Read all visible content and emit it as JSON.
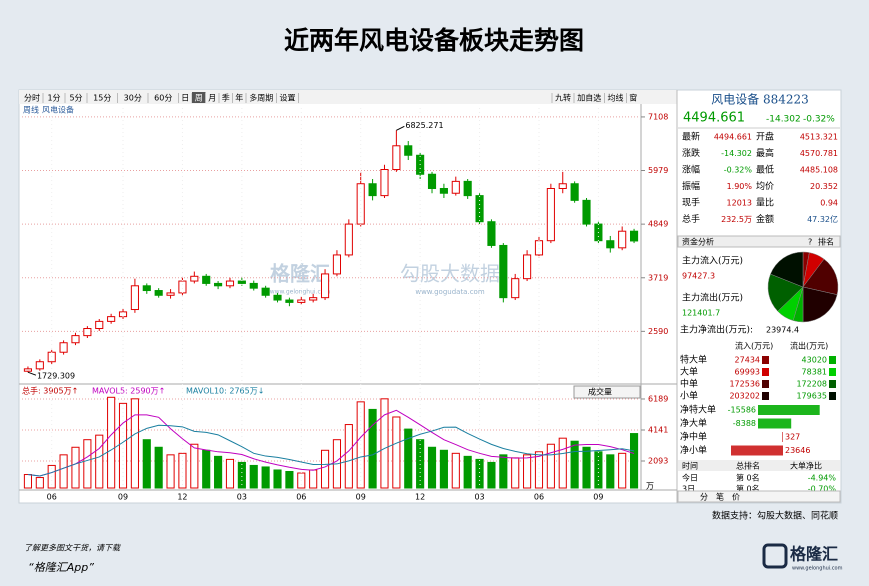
{
  "chart_data": {
    "type": "candlestick",
    "title": "近两年风电设备板块走势图",
    "toolbar_left": [
      "分时",
      "1分",
      "5分",
      "15分",
      "30分",
      "60分",
      "日",
      "周",
      "月",
      "季",
      "年",
      "多周期",
      "设置"
    ],
    "toolbar_selected": "周",
    "toolbar_right": [
      "九转",
      "加自选",
      "均线",
      "窗"
    ],
    "panel_labels": [
      "周线",
      "风电设备"
    ],
    "watermark": [
      "格隆汇",
      "www.gelonghui.com",
      "勾股大数据",
      "www.gogudata.com"
    ],
    "high_label": "6825.271",
    "low_label": "1729.309",
    "categories": [
      null,
      null,
      "06",
      null,
      null,
      null,
      null,
      null,
      "09",
      null,
      null,
      null,
      null,
      "12",
      null,
      null,
      null,
      null,
      "03",
      null,
      null,
      null,
      null,
      "06",
      null,
      null,
      null,
      null,
      "09",
      null,
      null,
      null,
      null,
      "12",
      null,
      null,
      null,
      null,
      "03",
      null,
      null,
      null,
      null,
      "06",
      null,
      null,
      null,
      null,
      "09",
      null,
      null,
      null
    ],
    "open": [
      1750,
      1800,
      1950,
      2150,
      2350,
      2500,
      2650,
      2800,
      2900,
      3050,
      3550,
      3450,
      3350,
      3400,
      3650,
      3750,
      3600,
      3550,
      3650,
      3600,
      3500,
      3350,
      3250,
      3200,
      3250,
      3300,
      3800,
      4200,
      4850,
      5700,
      5450,
      6000,
      6500,
      6300,
      5900,
      5600,
      5500,
      5750,
      5450,
      4900,
      4400,
      3300,
      3700,
      4200,
      4500,
      5600,
      5700,
      5350,
      4850,
      4500,
      4350,
      4700
    ],
    "high": [
      1850,
      2000,
      2200,
      2400,
      2560,
      2700,
      2850,
      2960,
      3080,
      3700,
      3600,
      3500,
      3480,
      3720,
      3850,
      3800,
      3650,
      3720,
      3720,
      3660,
      3550,
      3400,
      3300,
      3320,
      3380,
      3900,
      4300,
      4950,
      5950,
      5800,
      6100,
      6825.271,
      6600,
      6350,
      5950,
      5700,
      5850,
      5800,
      5500,
      4950,
      4450,
      3800,
      4300,
      4600,
      5700,
      5950,
      5750,
      5400,
      4900,
      4600,
      4800,
      4750
    ],
    "low": [
      1729.309,
      1760,
      1900,
      2100,
      2300,
      2450,
      2600,
      2750,
      2850,
      2980,
      3380,
      3300,
      3280,
      3350,
      3600,
      3550,
      3480,
      3500,
      3550,
      3450,
      3300,
      3200,
      3120,
      3150,
      3200,
      3250,
      3750,
      4150,
      4800,
      5350,
      5400,
      5950,
      6200,
      5800,
      5500,
      5400,
      5450,
      5380,
      4850,
      4350,
      3200,
      3250,
      3650,
      4150,
      4450,
      5500,
      5300,
      4800,
      4450,
      4250,
      4300,
      4450
    ],
    "close": [
      1800,
      1950,
      2150,
      2350,
      2500,
      2650,
      2800,
      2900,
      3000,
      3550,
      3450,
      3350,
      3400,
      3650,
      3750,
      3600,
      3550,
      3650,
      3600,
      3500,
      3350,
      3250,
      3200,
      3250,
      3300,
      3800,
      4200,
      4850,
      5700,
      5450,
      6000,
      6500,
      6300,
      5900,
      5600,
      5500,
      5750,
      5450,
      4900,
      4400,
      3300,
      3700,
      4200,
      4500,
      5600,
      5700,
      5350,
      4850,
      4500,
      4350,
      4700,
      4494.661
    ],
    "up_color": "#e00000",
    "down_color": "#009a00",
    "ylim": [
      1565,
      7296
    ],
    "yticks": [
      7108,
      5979,
      4849,
      3719,
      2590
    ],
    "grid": true,
    "volume": {
      "legend": [
        "总手: 3905万↑",
        "MAVOL5: 2590万↑",
        "MAVOL10: 2765万↓"
      ],
      "legend_colors": [
        "#c00000",
        "#c000c0",
        "#1a7fa0"
      ],
      "selector": "成交量",
      "unit": "万",
      "values": [
        1200,
        1000,
        1800,
        2500,
        3000,
        3500,
        3800,
        6300,
        5900,
        6200,
        3500,
        3000,
        2500,
        2600,
        3200,
        2800,
        2400,
        2200,
        2000,
        1800,
        1700,
        1500,
        1400,
        1300,
        1500,
        2800,
        3500,
        4500,
        6000,
        5500,
        6200,
        5000,
        4200,
        3500,
        3000,
        2800,
        2600,
        2400,
        2200,
        2000,
        2500,
        2300,
        2500,
        2700,
        3200,
        3600,
        3400,
        3000,
        2700,
        2500,
        2600,
        3905
      ],
      "ma5": [
        1200,
        1100,
        1330,
        1620,
        1900,
        2360,
        2920,
        3820,
        4600,
        5140,
        5140,
        4980,
        4220,
        3560,
        2960,
        2820,
        2700,
        2640,
        2520,
        2240,
        2020,
        1840,
        1680,
        1540,
        1480,
        1700,
        2100,
        2760,
        3660,
        4460,
        5140,
        5440,
        4980,
        4480,
        3980,
        3500,
        3180,
        2840,
        2600,
        2400,
        2340,
        2280,
        2300,
        2400,
        2640,
        2860,
        3140,
        3180,
        3180,
        3040,
        2840,
        2590
      ],
      "ma10": [
        1200,
        1100,
        1330,
        1620,
        1900,
        2130,
        2360,
        2820,
        3330,
        3880,
        4250,
        4450,
        4420,
        4350,
        4050,
        3980,
        3820,
        3430,
        3040,
        2600,
        2420,
        2330,
        2190,
        2030,
        1860,
        1870,
        1900,
        2100,
        2360,
        2500,
        2920,
        3270,
        3580,
        3860,
        4070,
        4320,
        4330,
        3910,
        3540,
        3190,
        2920,
        2730,
        2570,
        2500,
        2500,
        2590,
        2720,
        2740,
        2790,
        2840,
        2900,
        2765
      ],
      "ma_colors": [
        "#c000c0",
        "#1a7fa0"
      ],
      "ylim": [
        310,
        6650
      ],
      "yticks": [
        6189,
        4141,
        2093
      ]
    }
  },
  "side_panel": {
    "name": "风电设备 884223",
    "price": "4494.661",
    "change": "-14.302",
    "change_pct": "-0.32%",
    "quote": [
      [
        "最新",
        "4494.661",
        "开盘",
        "4513.321"
      ],
      [
        "涨跌",
        "-14.302",
        "最高",
        "4570.781"
      ],
      [
        "涨幅",
        "-0.32%",
        "最低",
        "4485.108"
      ],
      [
        "振幅",
        "1.90%",
        "均价",
        "20.352"
      ],
      [
        "现手",
        "12013",
        "量比",
        "0.94"
      ],
      [
        "总手",
        "232.5万",
        "金额",
        "47.32亿"
      ]
    ],
    "fund_tabs": [
      "资金分析",
      "?",
      "排名"
    ],
    "main_in_label": "主力流入(万元)",
    "main_in": "97427.3",
    "main_out_label": "主力流出(万元)",
    "main_out": "121401.7",
    "main_net_label": "主力净流出(万元):",
    "main_net": "23974.4",
    "flow_header": [
      "流入(万元)",
      "流出(万元)"
    ],
    "flow_rows": [
      {
        "name": "特大单",
        "in": 27434,
        "out": 43020,
        "in_color": "#8b0000",
        "out_color": "#00b000"
      },
      {
        "name": "大单",
        "in": 69993,
        "out": 78381,
        "in_color": "#d00000",
        "out_color": "#00d000"
      },
      {
        "name": "中单",
        "in": 172536,
        "out": 172208,
        "in_color": "#500000",
        "out_color": "#006000"
      },
      {
        "name": "小单",
        "in": 203202,
        "out": 179635,
        "in_color": "#200000",
        "out_color": "#001000"
      }
    ],
    "net_rows": [
      {
        "name": "净特大单",
        "value": -15586
      },
      {
        "name": "净大单",
        "value": -8388
      },
      {
        "name": "净中单",
        "value": 327
      },
      {
        "name": "净小单",
        "value": 23646
      }
    ],
    "rank_header": [
      "时间",
      "总排名",
      "大单净比"
    ],
    "rank_rows": [
      [
        "今日",
        "第 0名",
        "-4.94%"
      ],
      [
        "3日",
        "第 0名",
        "-0.70%"
      ]
    ],
    "bottom_tabs": [
      "分",
      "笔",
      "价"
    ]
  },
  "footer": {
    "source": "数据支持：勾股大数据、同花顺",
    "promo": "了解更多图文干货，请下载",
    "app": "“格隆汇App”",
    "logo": "格隆汇",
    "logo_url": "www.gelonghui.com"
  }
}
